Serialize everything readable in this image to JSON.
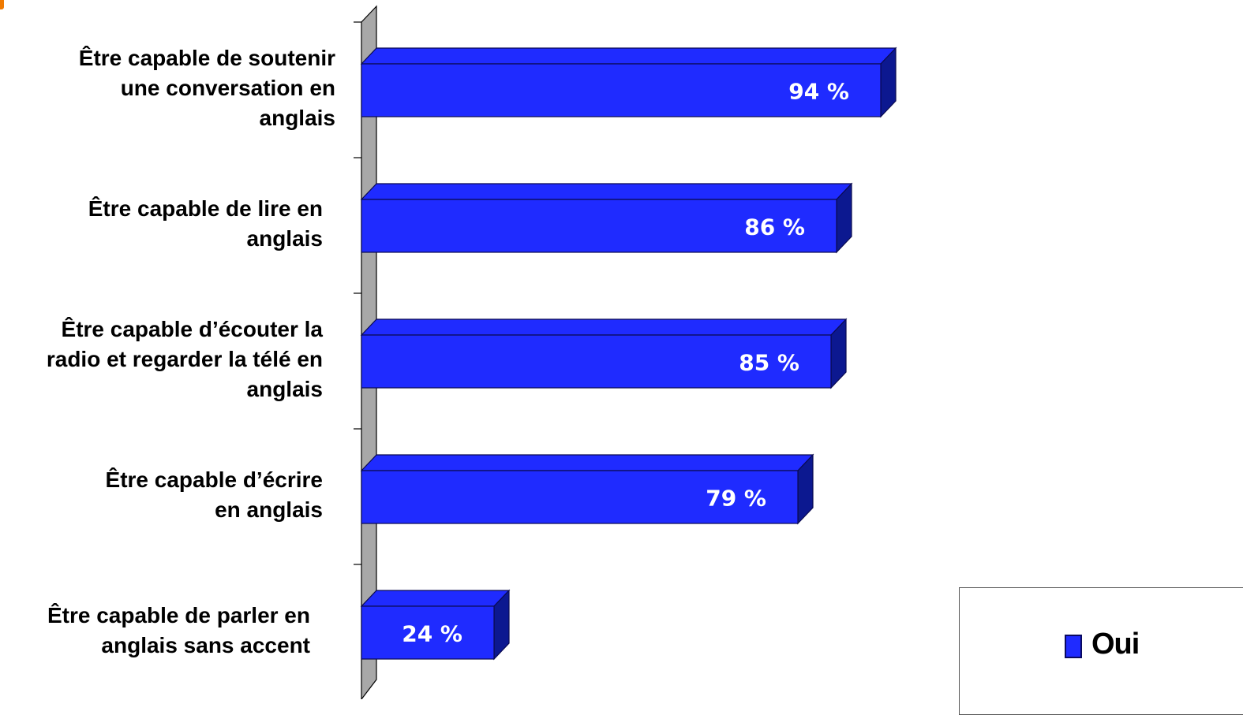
{
  "chart_data": {
    "type": "bar",
    "orientation": "horizontal",
    "categories": [
      "Être capable de soutenir\nune conversation en\nanglais",
      "Être capable de lire en\nanglais",
      "Être capable d’écouter la\nradio et regarder la télé en\nanglais",
      "Être capable d’écrire\nen anglais",
      "Être capable de parler en\nanglais sans accent"
    ],
    "series": [
      {
        "name": "Oui",
        "values": [
          94,
          86,
          85,
          79,
          24
        ],
        "value_labels": [
          "94 %",
          "86 %",
          "85 %",
          "79 %",
          "24 %"
        ]
      }
    ],
    "xlim": [
      0,
      100
    ],
    "grid": false,
    "legend": "bottom-right",
    "colors": {
      "bar_front": "#1f2bff",
      "bar_top": "#1f2bff",
      "bar_side": "#0c1890",
      "bar_edge": "#0a0a50",
      "axis_wall": "#a8a8a8",
      "value_label": "#ffffff"
    }
  },
  "legend": {
    "label": "Oui"
  }
}
